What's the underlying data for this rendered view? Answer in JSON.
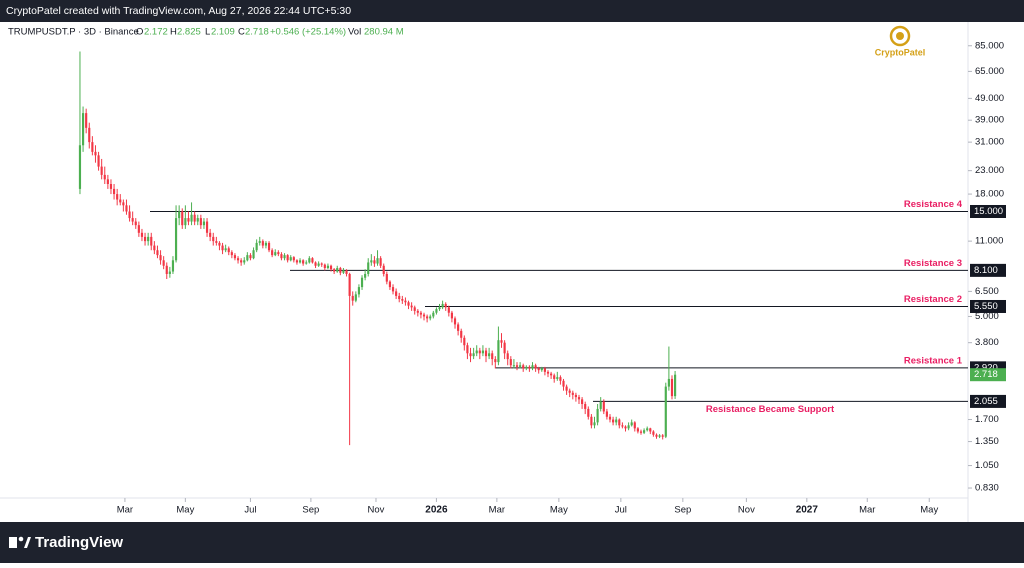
{
  "header": {
    "credit": "CryptoPatel created with TradingView.com, Aug 27, 2026 22:44 UTC+5:30"
  },
  "footer": {
    "brand": "TradingView"
  },
  "chart_data": {
    "type": "candlestick",
    "symbol": "TRUMPUSDT.P · 3D · Binance",
    "legend": {
      "o_label": "O",
      "o": "2.172",
      "h_label": "H",
      "h": "2.825",
      "l_label": "L",
      "l": "2.109",
      "c_label": "C",
      "c": "2.718",
      "change": "+0.546 (+25.14%)",
      "vol_label": "Vol",
      "vol": "280.94 M"
    },
    "watermark": "CryptoPatel",
    "log_scale": true,
    "up_color": "#4caf50",
    "down_color": "#f23645",
    "ylim": [
      0.594,
      109
    ],
    "xlim": [
      -25.8,
      286.5
    ],
    "yticks": [
      {
        "value": 85,
        "label": "85.000"
      },
      {
        "value": 65,
        "label": "65.000"
      },
      {
        "value": 49,
        "label": "49.000"
      },
      {
        "value": 39,
        "label": "39.000"
      },
      {
        "value": 31,
        "label": "31.000"
      },
      {
        "value": 23,
        "label": "23.000"
      },
      {
        "value": 18,
        "label": "18.000"
      },
      {
        "value": 11,
        "label": "11.000"
      },
      {
        "value": 6.5,
        "label": "6.500"
      },
      {
        "value": 5,
        "label": "5.000"
      },
      {
        "value": 3.8,
        "label": "3.800"
      },
      {
        "value": 1.7,
        "label": "1.700"
      },
      {
        "value": 1.35,
        "label": "1.350"
      },
      {
        "value": 1.05,
        "label": "1.050"
      },
      {
        "value": 0.83,
        "label": "0.830"
      }
    ],
    "xticks": [
      {
        "value": 14.5,
        "label": "Mar"
      },
      {
        "value": 34,
        "label": "May"
      },
      {
        "value": 55,
        "label": "Jul"
      },
      {
        "value": 74.5,
        "label": "Sep"
      },
      {
        "value": 95.5,
        "label": "Nov"
      },
      {
        "value": 115,
        "label": "2026"
      },
      {
        "value": 134.5,
        "label": "Mar"
      },
      {
        "value": 154.5,
        "label": "May"
      },
      {
        "value": 174.5,
        "label": "Jul"
      },
      {
        "value": 194.5,
        "label": "Sep"
      },
      {
        "value": 215,
        "label": "Nov"
      },
      {
        "value": 234.5,
        "label": "2027"
      },
      {
        "value": 254,
        "label": "Mar"
      },
      {
        "value": 274,
        "label": "May"
      }
    ],
    "levels": [
      {
        "value": 15,
        "label": "15.000",
        "annotation": "Resistance 4"
      },
      {
        "value": 8.1,
        "label": "8.100",
        "annotation": "Resistance 3"
      },
      {
        "value": 5.55,
        "label": "5.550",
        "annotation": "Resistance 2"
      },
      {
        "value": 2.92,
        "label": "2.920",
        "annotation": "Resistance 1"
      },
      {
        "value": 2.055,
        "label": "2.055",
        "annotation": "Resistance Became Support"
      }
    ],
    "last_price": {
      "value": 2.718,
      "label": "2.718",
      "color": "#4caf50"
    },
    "candles": [
      [
        19,
        80,
        18,
        30
      ],
      [
        30,
        45,
        28,
        42
      ],
      [
        42,
        44,
        34,
        36
      ],
      [
        36,
        38,
        29,
        31
      ],
      [
        31,
        33,
        27,
        28
      ],
      [
        28,
        30,
        25,
        27
      ],
      [
        27,
        28,
        23,
        24
      ],
      [
        24,
        26,
        21,
        22
      ],
      [
        22,
        24,
        20,
        21
      ],
      [
        21,
        22,
        19,
        20
      ],
      [
        20,
        21,
        18,
        19
      ],
      [
        19,
        20,
        17,
        18
      ],
      [
        18,
        19,
        16,
        17
      ],
      [
        17,
        18,
        16,
        16.5
      ],
      [
        16.5,
        17,
        15,
        16
      ],
      [
        16,
        17,
        14.5,
        15
      ],
      [
        15,
        16,
        13.5,
        14
      ],
      [
        14,
        15,
        13,
        13.5
      ],
      [
        13.5,
        14,
        12.5,
        13
      ],
      [
        13,
        13.5,
        11.5,
        12
      ],
      [
        12,
        12.5,
        11,
        11.5
      ],
      [
        11.5,
        12,
        10.5,
        11
      ],
      [
        11,
        12,
        10.5,
        11.5
      ],
      [
        11.5,
        12,
        10,
        10.5
      ],
      [
        10.5,
        11,
        9.6,
        10
      ],
      [
        10,
        10.5,
        9.2,
        9.5
      ],
      [
        9.5,
        10,
        8.6,
        9
      ],
      [
        9,
        9.4,
        8.2,
        8.5
      ],
      [
        8.5,
        8.8,
        7.4,
        7.8
      ],
      [
        7.8,
        8.4,
        7.5,
        8
      ],
      [
        8,
        9.4,
        7.8,
        9
      ],
      [
        9,
        16,
        8.8,
        14
      ],
      [
        14,
        16,
        13,
        15
      ],
      [
        15,
        15.5,
        12.5,
        13
      ],
      [
        13,
        16,
        12.5,
        14
      ],
      [
        14,
        15,
        13,
        13.5
      ],
      [
        13.5,
        16.5,
        13,
        14.5
      ],
      [
        14.5,
        15,
        13,
        13.5
      ],
      [
        13.5,
        14.5,
        13,
        14
      ],
      [
        14,
        14.5,
        12.5,
        13
      ],
      [
        13,
        14,
        12.5,
        13.5
      ],
      [
        13.5,
        14,
        11.5,
        12
      ],
      [
        12,
        12.5,
        11,
        11.5
      ],
      [
        11.5,
        12,
        10.5,
        11
      ],
      [
        11,
        11.5,
        10.5,
        10.8
      ],
      [
        10.8,
        11,
        10,
        10.5
      ],
      [
        10.5,
        10.8,
        9.6,
        10
      ],
      [
        10,
        10.6,
        9.8,
        10.2
      ],
      [
        10.2,
        10.4,
        9.5,
        9.8
      ],
      [
        9.8,
        10,
        9.2,
        9.5
      ],
      [
        9.5,
        9.7,
        9,
        9.2
      ],
      [
        9.2,
        9.4,
        8.7,
        9
      ],
      [
        9,
        9.2,
        8.5,
        8.8
      ],
      [
        8.8,
        9.3,
        8.6,
        9
      ],
      [
        9,
        9.8,
        8.9,
        9.5
      ],
      [
        9.5,
        9.7,
        9,
        9.2
      ],
      [
        9.2,
        10.3,
        9.1,
        10
      ],
      [
        10,
        11.2,
        9.8,
        10.8
      ],
      [
        10.8,
        11.5,
        10.5,
        11
      ],
      [
        11,
        11.2,
        10.2,
        10.5
      ],
      [
        10.5,
        11,
        10.2,
        10.8
      ],
      [
        10.8,
        11,
        9.8,
        10
      ],
      [
        10,
        10.2,
        9.3,
        9.5
      ],
      [
        9.5,
        10.1,
        9.4,
        9.8
      ],
      [
        9.8,
        10,
        9.4,
        9.6
      ],
      [
        9.6,
        9.8,
        9,
        9.2
      ],
      [
        9.2,
        9.7,
        9,
        9.5
      ],
      [
        9.5,
        9.6,
        8.8,
        9
      ],
      [
        9,
        9.5,
        8.9,
        9.3
      ],
      [
        9.3,
        9.4,
        8.8,
        9
      ],
      [
        9,
        9.1,
        8.6,
        8.8
      ],
      [
        8.8,
        9.2,
        8.7,
        9
      ],
      [
        9,
        9.1,
        8.5,
        8.7
      ],
      [
        8.7,
        9,
        8.6,
        8.8
      ],
      [
        8.8,
        9.4,
        8.7,
        9.2
      ],
      [
        9.2,
        9.3,
        8.7,
        8.8
      ],
      [
        8.8,
        8.9,
        8.3,
        8.5
      ],
      [
        8.5,
        8.9,
        8.4,
        8.7
      ],
      [
        8.7,
        8.8,
        8.4,
        8.6
      ],
      [
        8.6,
        8.7,
        8.1,
        8.3
      ],
      [
        8.3,
        8.7,
        8.2,
        8.5
      ],
      [
        8.5,
        8.6,
        8,
        8.2
      ],
      [
        8.2,
        8.3,
        7.8,
        8
      ],
      [
        8,
        8.5,
        7.9,
        8.3
      ],
      [
        8.3,
        8.4,
        7.7,
        7.9
      ],
      [
        7.9,
        8.3,
        7.8,
        8.1
      ],
      [
        8.1,
        8.2,
        7.6,
        7.8
      ],
      [
        7.8,
        7.9,
        1.3,
        6.2
      ],
      [
        6.2,
        6.5,
        5.6,
        5.9
      ],
      [
        5.9,
        6.5,
        5.8,
        6.3
      ],
      [
        6.3,
        7,
        6.1,
        6.8
      ],
      [
        6.8,
        7.7,
        6.6,
        7.5
      ],
      [
        7.5,
        8.2,
        7.3,
        7.8
      ],
      [
        7.8,
        9.2,
        7.6,
        8.8
      ],
      [
        8.8,
        9.6,
        8.5,
        9
      ],
      [
        9,
        9.4,
        8.4,
        8.7
      ],
      [
        8.7,
        10,
        8.5,
        9.2
      ],
      [
        9.2,
        9.4,
        8.3,
        8.5
      ],
      [
        8.5,
        8.7,
        7.6,
        7.8
      ],
      [
        7.8,
        8,
        7,
        7.2
      ],
      [
        7.2,
        7.3,
        6.6,
        6.8
      ],
      [
        6.8,
        7,
        6.3,
        6.5
      ],
      [
        6.5,
        6.7,
        6,
        6.2
      ],
      [
        6.2,
        6.4,
        5.8,
        6
      ],
      [
        6,
        6.2,
        5.7,
        5.9
      ],
      [
        5.9,
        6.1,
        5.6,
        5.8
      ],
      [
        5.8,
        5.9,
        5.4,
        5.6
      ],
      [
        5.6,
        5.8,
        5.3,
        5.5
      ],
      [
        5.5,
        5.6,
        5.1,
        5.3
      ],
      [
        5.3,
        5.4,
        5,
        5.2
      ],
      [
        5.2,
        5.3,
        4.9,
        5.1
      ],
      [
        5.1,
        5.2,
        4.8,
        5
      ],
      [
        5,
        5.1,
        4.7,
        4.9
      ],
      [
        4.9,
        5.1,
        4.8,
        5
      ],
      [
        5,
        5.3,
        4.9,
        5.2
      ],
      [
        5.2,
        5.5,
        5.1,
        5.4
      ],
      [
        5.4,
        5.7,
        5.3,
        5.5
      ],
      [
        5.5,
        5.9,
        5.4,
        5.7
      ],
      [
        5.7,
        5.8,
        5.3,
        5.5
      ],
      [
        5.5,
        5.6,
        5,
        5.2
      ],
      [
        5.2,
        5.3,
        4.7,
        4.9
      ],
      [
        4.9,
        5,
        4.4,
        4.6
      ],
      [
        4.6,
        4.7,
        4.1,
        4.3
      ],
      [
        4.3,
        4.4,
        3.8,
        4
      ],
      [
        4,
        4.1,
        3.5,
        3.7
      ],
      [
        3.7,
        3.8,
        3.2,
        3.4
      ],
      [
        3.4,
        3.6,
        3.1,
        3.3
      ],
      [
        3.3,
        3.6,
        3.2,
        3.4
      ],
      [
        3.4,
        3.7,
        3.3,
        3.5
      ],
      [
        3.5,
        3.6,
        3.2,
        3.4
      ],
      [
        3.4,
        3.7,
        3.3,
        3.5
      ],
      [
        3.5,
        3.6,
        3.1,
        3.3
      ],
      [
        3.3,
        3.6,
        3.2,
        3.4
      ],
      [
        3.4,
        3.5,
        3,
        3.2
      ],
      [
        3.2,
        3.3,
        2.9,
        3.1
      ],
      [
        3.1,
        4.5,
        3,
        3.9
      ],
      [
        3.9,
        4.2,
        3.6,
        3.8
      ],
      [
        3.8,
        3.9,
        3.2,
        3.4
      ],
      [
        3.4,
        3.5,
        3,
        3.2
      ],
      [
        3.2,
        3.3,
        2.9,
        3
      ],
      [
        3,
        3.2,
        2.9,
        3
      ],
      [
        3,
        3.1,
        2.85,
        2.95
      ],
      [
        2.95,
        3.1,
        2.9,
        3
      ],
      [
        3,
        3.05,
        2.8,
        2.9
      ],
      [
        2.9,
        3,
        2.85,
        2.95
      ],
      [
        2.95,
        3,
        2.8,
        2.9
      ],
      [
        2.9,
        3.1,
        2.85,
        3
      ],
      [
        3,
        3.05,
        2.8,
        2.9
      ],
      [
        2.9,
        2.95,
        2.75,
        2.85
      ],
      [
        2.85,
        2.95,
        2.8,
        2.9
      ],
      [
        2.9,
        2.95,
        2.7,
        2.8
      ],
      [
        2.8,
        2.85,
        2.65,
        2.75
      ],
      [
        2.75,
        2.8,
        2.6,
        2.7
      ],
      [
        2.7,
        2.75,
        2.5,
        2.6
      ],
      [
        2.6,
        2.8,
        2.55,
        2.65
      ],
      [
        2.65,
        2.7,
        2.45,
        2.55
      ],
      [
        2.55,
        2.6,
        2.3,
        2.4
      ],
      [
        2.4,
        2.45,
        2.2,
        2.3
      ],
      [
        2.3,
        2.35,
        2.15,
        2.25
      ],
      [
        2.25,
        2.3,
        2.1,
        2.2
      ],
      [
        2.2,
        2.25,
        2.05,
        2.15
      ],
      [
        2.15,
        2.2,
        2,
        2.1
      ],
      [
        2.1,
        2.15,
        1.9,
        2
      ],
      [
        2,
        2.05,
        1.8,
        1.9
      ],
      [
        1.9,
        1.95,
        1.7,
        1.75
      ],
      [
        1.75,
        1.8,
        1.55,
        1.6
      ],
      [
        1.6,
        1.75,
        1.55,
        1.65
      ],
      [
        1.65,
        2,
        1.6,
        1.9
      ],
      [
        1.9,
        2.15,
        1.85,
        2.05
      ],
      [
        2.05,
        2.1,
        1.8,
        1.85
      ],
      [
        1.85,
        1.9,
        1.7,
        1.75
      ],
      [
        1.75,
        1.8,
        1.65,
        1.7
      ],
      [
        1.7,
        1.75,
        1.6,
        1.65
      ],
      [
        1.65,
        1.75,
        1.6,
        1.7
      ],
      [
        1.7,
        1.72,
        1.55,
        1.6
      ],
      [
        1.6,
        1.65,
        1.55,
        1.58
      ],
      [
        1.58,
        1.6,
        1.5,
        1.55
      ],
      [
        1.55,
        1.65,
        1.52,
        1.6
      ],
      [
        1.6,
        1.7,
        1.58,
        1.65
      ],
      [
        1.65,
        1.67,
        1.5,
        1.55
      ],
      [
        1.55,
        1.57,
        1.47,
        1.5
      ],
      [
        1.5,
        1.53,
        1.45,
        1.48
      ],
      [
        1.48,
        1.55,
        1.46,
        1.52
      ],
      [
        1.52,
        1.58,
        1.5,
        1.55
      ],
      [
        1.55,
        1.56,
        1.46,
        1.5
      ],
      [
        1.5,
        1.52,
        1.42,
        1.45
      ],
      [
        1.45,
        1.47,
        1.39,
        1.42
      ],
      [
        1.42,
        1.46,
        1.4,
        1.44
      ],
      [
        1.44,
        1.46,
        1.38,
        1.42
      ],
      [
        1.42,
        2.5,
        1.4,
        2.4
      ],
      [
        2.4,
        3.65,
        2.3,
        2.6
      ],
      [
        2.6,
        2.7,
        2.1,
        2.172
      ],
      [
        2.172,
        2.825,
        2.109,
        2.718
      ]
    ]
  }
}
